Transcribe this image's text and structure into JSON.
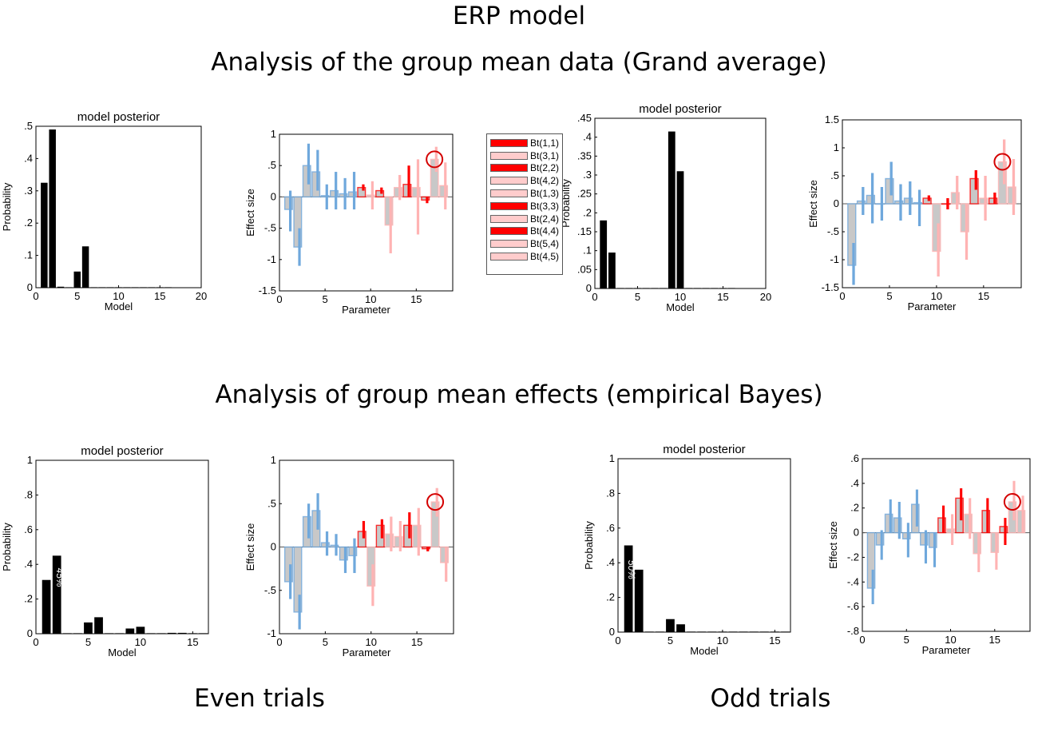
{
  "header": {
    "title": "ERP model",
    "subtitle_top": "Analysis of the group mean data (Grand average)",
    "subtitle_bottom": "Analysis of group mean effects (empirical Bayes)"
  },
  "footer": {
    "left": "Even trials",
    "right": "Odd trials"
  },
  "legend": {
    "items": [
      {
        "label": "Bt(1,1)",
        "color": "#ff0000"
      },
      {
        "label": "Bt(3,1)",
        "color": "#ffcccc"
      },
      {
        "label": "Bt(2,2)",
        "color": "#ff0000"
      },
      {
        "label": "Bt(4,2)",
        "color": "#ffcccc"
      },
      {
        "label": "Bt(1,3)",
        "color": "#ffcccc"
      },
      {
        "label": "Bt(3,3)",
        "color": "#ff0000"
      },
      {
        "label": "Bt(2,4)",
        "color": "#ffcccc"
      },
      {
        "label": "Bt(4,4)",
        "color": "#ff0000"
      },
      {
        "label": "Bt(5,4)",
        "color": "#ffcccc"
      },
      {
        "label": "Bt(4,5)",
        "color": "#ffcccc"
      }
    ]
  },
  "chart_data": [
    {
      "id": "ga_left_posterior",
      "type": "bar",
      "title": "model posterior",
      "xlabel": "Model",
      "ylabel": "Probability",
      "xlim": [
        0,
        20
      ],
      "ylim": [
        0,
        0.5
      ],
      "xticks": [
        0,
        5,
        10,
        15,
        20
      ],
      "yticks": [
        0,
        0.1,
        0.2,
        0.3,
        0.4,
        0.5
      ],
      "x": [
        1,
        2,
        3,
        4,
        5,
        6,
        7,
        8,
        9,
        10,
        11,
        12,
        13,
        14,
        15,
        16
      ],
      "values": [
        0.325,
        0.49,
        0.003,
        0,
        0.05,
        0.128,
        0.001,
        0.001,
        0.001,
        0.001,
        0.001,
        0.001,
        0.001,
        0.001,
        0.001,
        0.001
      ]
    },
    {
      "id": "ga_left_params",
      "type": "bar",
      "xlabel": "Parameter",
      "ylabel": "Effect size",
      "xlim": [
        0,
        19
      ],
      "ylim": [
        -1.5,
        1
      ],
      "xticks": [
        0,
        5,
        10,
        15
      ],
      "yticks": [
        -1.5,
        -1,
        -0.5,
        0,
        0.5,
        1
      ],
      "x": [
        1,
        2,
        3,
        4,
        5,
        6,
        7,
        8,
        9,
        10,
        11,
        12,
        13,
        14,
        15,
        16,
        17,
        18
      ],
      "values": [
        -0.2,
        -0.8,
        0.5,
        0.4,
        0.02,
        0.1,
        0.05,
        0.08,
        0.15,
        0.03,
        0.1,
        -0.45,
        0.15,
        0.2,
        0.15,
        -0.05,
        0.6,
        0.18
      ],
      "ci_low": [
        -0.55,
        -1.1,
        0.2,
        0.1,
        -0.2,
        -0.2,
        -0.2,
        -0.2,
        0.1,
        -0.2,
        0.05,
        -0.9,
        -0.05,
        0.0,
        -0.6,
        -0.1,
        0.4,
        -0.2
      ],
      "ci_high": [
        0.1,
        -0.5,
        0.85,
        0.75,
        0.2,
        0.4,
        0.3,
        0.4,
        0.2,
        0.25,
        0.15,
        0.0,
        0.35,
        0.5,
        0.6,
        0.0,
        0.8,
        0.55
      ],
      "colors": [
        "#6fa8dc",
        "#6fa8dc",
        "#6fa8dc",
        "#6fa8dc",
        "#6fa8dc",
        "#6fa8dc",
        "#6fa8dc",
        "#6fa8dc",
        "#ff0000",
        "#ffb3b3",
        "#ff0000",
        "#ffb3b3",
        "#ffb3b3",
        "#ff0000",
        "#ffb3b3",
        "#ff0000",
        "#ffb3b3",
        "#ffb3b3"
      ],
      "circle_param": 17
    },
    {
      "id": "ga_right_posterior",
      "type": "bar",
      "title": "model posterior",
      "xlabel": "Model",
      "ylabel": "Probability",
      "xlim": [
        0,
        20
      ],
      "ylim": [
        0,
        0.45
      ],
      "xticks": [
        0,
        5,
        10,
        15,
        20
      ],
      "yticks": [
        0,
        0.05,
        0.1,
        0.15,
        0.2,
        0.25,
        0.3,
        0.35,
        0.4,
        0.45
      ],
      "x": [
        1,
        2,
        3,
        4,
        5,
        6,
        7,
        8,
        9,
        10,
        11,
        12,
        13,
        14,
        15,
        16
      ],
      "values": [
        0.18,
        0.095,
        0,
        0,
        0,
        0,
        0,
        0,
        0.415,
        0.31,
        0.001,
        0.001,
        0.001,
        0.001,
        0.001,
        0.001
      ]
    },
    {
      "id": "ga_right_params",
      "type": "bar",
      "xlabel": "Parameter",
      "ylabel": "Effect size",
      "xlim": [
        0,
        19
      ],
      "ylim": [
        -1.5,
        1.5
      ],
      "xticks": [
        0,
        5,
        10,
        15
      ],
      "yticks": [
        -1.5,
        -1,
        -0.5,
        0,
        0.5,
        1,
        1.5
      ],
      "x": [
        1,
        2,
        3,
        4,
        5,
        6,
        7,
        8,
        9,
        10,
        11,
        12,
        13,
        14,
        15,
        16,
        17,
        18
      ],
      "values": [
        -1.1,
        0.05,
        0.15,
        0.0,
        0.45,
        0.05,
        0.1,
        0.02,
        0.1,
        -0.85,
        0.0,
        0.2,
        -0.5,
        0.45,
        0.1,
        0.1,
        0.75,
        0.3
      ],
      "ci_low": [
        -1.45,
        -0.2,
        -0.35,
        -0.3,
        0.15,
        -0.3,
        -0.2,
        -0.4,
        0.05,
        -1.3,
        -0.1,
        -0.1,
        -1.0,
        0.25,
        -0.3,
        0.0,
        0.35,
        -0.2
      ],
      "ci_high": [
        -0.7,
        0.3,
        0.55,
        0.3,
        0.75,
        0.35,
        0.4,
        0.25,
        0.15,
        -0.35,
        0.1,
        0.5,
        0.0,
        0.6,
        0.5,
        0.2,
        1.15,
        0.8
      ],
      "colors": [
        "#6fa8dc",
        "#6fa8dc",
        "#6fa8dc",
        "#6fa8dc",
        "#6fa8dc",
        "#6fa8dc",
        "#6fa8dc",
        "#6fa8dc",
        "#ff0000",
        "#ffb3b3",
        "#ff0000",
        "#ffb3b3",
        "#ffb3b3",
        "#ff0000",
        "#ffb3b3",
        "#ff0000",
        "#ffb3b3",
        "#ffb3b3"
      ],
      "circle_param": 17
    },
    {
      "id": "eb_left_posterior",
      "type": "bar",
      "title": "model posterior",
      "xlabel": "Model",
      "ylabel": "Probability",
      "xlim": [
        0,
        16.5
      ],
      "ylim": [
        0,
        1
      ],
      "xticks": [
        0,
        5,
        10,
        15
      ],
      "yticks": [
        0,
        0.2,
        0.4,
        0.6,
        0.8,
        1
      ],
      "x": [
        1,
        2,
        3,
        4,
        5,
        6,
        7,
        8,
        9,
        10,
        11,
        12,
        13,
        14,
        15,
        16
      ],
      "values": [
        0.31,
        0.45,
        0.003,
        0.003,
        0.065,
        0.095,
        0.003,
        0.003,
        0.03,
        0.04,
        0.003,
        0.003,
        0.005,
        0.005,
        0.003,
        0.003
      ],
      "bar_label": {
        "index": 2,
        "text": "45%"
      }
    },
    {
      "id": "eb_left_params",
      "type": "bar",
      "xlabel": "Parameter",
      "ylabel": "Effect size",
      "xlim": [
        0,
        19
      ],
      "ylim": [
        -1,
        1
      ],
      "xticks": [
        0,
        5,
        10,
        15
      ],
      "yticks": [
        -1,
        -0.5,
        0,
        0.5,
        1
      ],
      "x": [
        1,
        2,
        3,
        4,
        5,
        6,
        7,
        8,
        9,
        10,
        11,
        12,
        13,
        14,
        15,
        16,
        17,
        18
      ],
      "values": [
        -0.4,
        -0.75,
        0.35,
        0.42,
        0.05,
        0.02,
        -0.15,
        -0.1,
        0.18,
        -0.45,
        0.25,
        0.15,
        0.12,
        0.25,
        0.25,
        -0.02,
        0.52,
        -0.18
      ],
      "ci_low": [
        -0.6,
        -0.95,
        0.1,
        0.2,
        -0.1,
        -0.1,
        -0.3,
        -0.3,
        0.1,
        -0.68,
        0.1,
        -0.05,
        -0.05,
        0.1,
        -0.1,
        -0.05,
        0.35,
        -0.4
      ],
      "ci_high": [
        -0.2,
        -0.55,
        0.5,
        0.62,
        0.18,
        0.15,
        0.0,
        0.1,
        0.3,
        -0.2,
        0.32,
        0.35,
        0.3,
        0.4,
        0.45,
        0.0,
        0.68,
        0.0
      ],
      "colors": [
        "#6fa8dc",
        "#6fa8dc",
        "#6fa8dc",
        "#6fa8dc",
        "#6fa8dc",
        "#6fa8dc",
        "#6fa8dc",
        "#6fa8dc",
        "#ff0000",
        "#ffb3b3",
        "#ff0000",
        "#ffb3b3",
        "#ffb3b3",
        "#ff0000",
        "#ffb3b3",
        "#ff0000",
        "#ffb3b3",
        "#ffb3b3"
      ],
      "circle_param": 17
    },
    {
      "id": "eb_right_posterior",
      "type": "bar",
      "title": "model posterior",
      "xlabel": "Model",
      "ylabel": "Probability",
      "xlim": [
        0,
        16.5
      ],
      "ylim": [
        0,
        1
      ],
      "xticks": [
        0,
        5,
        10,
        15
      ],
      "yticks": [
        0,
        0.2,
        0.4,
        0.6,
        0.8,
        1
      ],
      "x": [
        1,
        2,
        3,
        4,
        5,
        6,
        7,
        8,
        9,
        10,
        11,
        12,
        13,
        14,
        15,
        16
      ],
      "values": [
        0.5,
        0.36,
        0.003,
        0.003,
        0.075,
        0.045,
        0.003,
        0.003,
        0.003,
        0.003,
        0.003,
        0.003,
        0.003,
        0.003,
        0.003,
        0.003
      ],
      "bar_label": {
        "index": 1,
        "text": "50%"
      }
    },
    {
      "id": "eb_right_params",
      "type": "bar",
      "xlabel": "Parameter",
      "ylabel": "Effect size",
      "xlim": [
        0,
        19
      ],
      "ylim": [
        -0.8,
        0.6
      ],
      "xticks": [
        0,
        5,
        10,
        15
      ],
      "yticks": [
        -0.8,
        -0.6,
        -0.4,
        -0.2,
        0,
        0.2,
        0.4,
        0.6
      ],
      "x": [
        1,
        2,
        3,
        4,
        5,
        6,
        7,
        8,
        9,
        10,
        11,
        12,
        13,
        14,
        15,
        16,
        17,
        18
      ],
      "values": [
        -0.45,
        -0.1,
        0.15,
        0.12,
        -0.05,
        0.23,
        -0.1,
        -0.12,
        0.12,
        0.03,
        0.28,
        0.15,
        -0.17,
        0.18,
        -0.16,
        0.05,
        0.25,
        0.18
      ],
      "ci_low": [
        -0.58,
        -0.22,
        0.0,
        -0.05,
        -0.2,
        0.05,
        -0.25,
        -0.28,
        0.0,
        -0.1,
        0.1,
        -0.05,
        -0.32,
        0.0,
        -0.3,
        -0.1,
        0.1,
        0.0
      ],
      "ci_high": [
        -0.3,
        0.02,
        0.27,
        0.25,
        0.08,
        0.35,
        0.02,
        0.0,
        0.22,
        0.15,
        0.36,
        0.28,
        0.0,
        0.28,
        0.0,
        0.12,
        0.42,
        0.3
      ],
      "colors": [
        "#6fa8dc",
        "#6fa8dc",
        "#6fa8dc",
        "#6fa8dc",
        "#6fa8dc",
        "#6fa8dc",
        "#6fa8dc",
        "#6fa8dc",
        "#ff0000",
        "#ffb3b3",
        "#ff0000",
        "#ffb3b3",
        "#ffb3b3",
        "#ff0000",
        "#ffb3b3",
        "#ff0000",
        "#ffb3b3",
        "#ffb3b3"
      ],
      "circle_param": 17
    }
  ]
}
